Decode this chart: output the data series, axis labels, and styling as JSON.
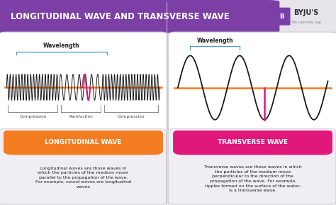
{
  "title": "LONGITUDINAL WAVE AND TRANSVERSE WAVE",
  "title_bg": "#7b3fa5",
  "title_color": "#ffffff",
  "bg_color": "#e8e4ec",
  "panel_bg": "#ffffff",
  "bottom_bg": "#f0edf5",
  "orange_label": "LONGITUDINAL WAVE",
  "orange_color": "#f47c20",
  "pink_label": "TRANSVERSE WAVE",
  "pink_color": "#e0187a",
  "long_text": "Longitudinal waves are those waves in\nwhich the particles of the medium move\nparallel to the propagation of the wave.\nFor example, sound waves are longitudinal\nwaves",
  "trans_text": "Transverse waves are those waves in which\nthe particles of the medium move\nperpendicular to the direction of the\npropagation of the wave. For example,\nripples formed on the surface of the water,\nis a transverse wave.",
  "wave_pink": "#e0187a",
  "wave_black": "#1a1a1a",
  "axis_line_color": "#f47c20",
  "wavelength_label": "Wavelength",
  "bracket_color": "#4a9ece",
  "divider_color": "#c0b8cc",
  "byju_text_color": "#333333",
  "byju_sub_color": "#888888",
  "label_color": "#444444"
}
